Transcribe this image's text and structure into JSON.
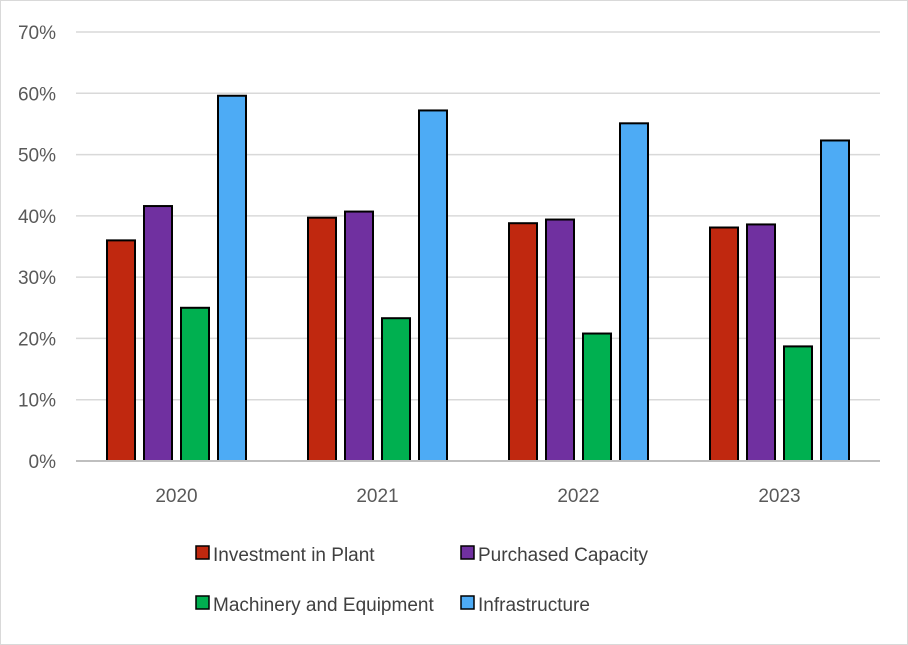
{
  "chart_data": {
    "type": "bar",
    "categories": [
      "2020",
      "2021",
      "2022",
      "2023"
    ],
    "series": [
      {
        "name": "Investment in Plant",
        "color": "#c0280f",
        "values": [
          36,
          39.7,
          38.8,
          38.1
        ]
      },
      {
        "name": "Purchased Capacity",
        "color": "#7030a0",
        "values": [
          41.6,
          40.7,
          39.4,
          38.6
        ]
      },
      {
        "name": "Machinery and Equipment",
        "color": "#00b050",
        "values": [
          25,
          23.3,
          20.8,
          18.7
        ]
      },
      {
        "name": "Infrastructure",
        "color": "#4dabf5",
        "values": [
          59.6,
          57.2,
          55.1,
          52.3
        ]
      }
    ],
    "ylim": [
      0,
      70
    ],
    "yticks": [
      0,
      10,
      20,
      30,
      40,
      50,
      60,
      70
    ],
    "ytick_labels": [
      "0%",
      "10%",
      "20%",
      "30%",
      "40%",
      "50%",
      "60%",
      "70%"
    ],
    "title": "",
    "xlabel": "",
    "ylabel": "",
    "grid": true,
    "legend_position": "bottom"
  }
}
